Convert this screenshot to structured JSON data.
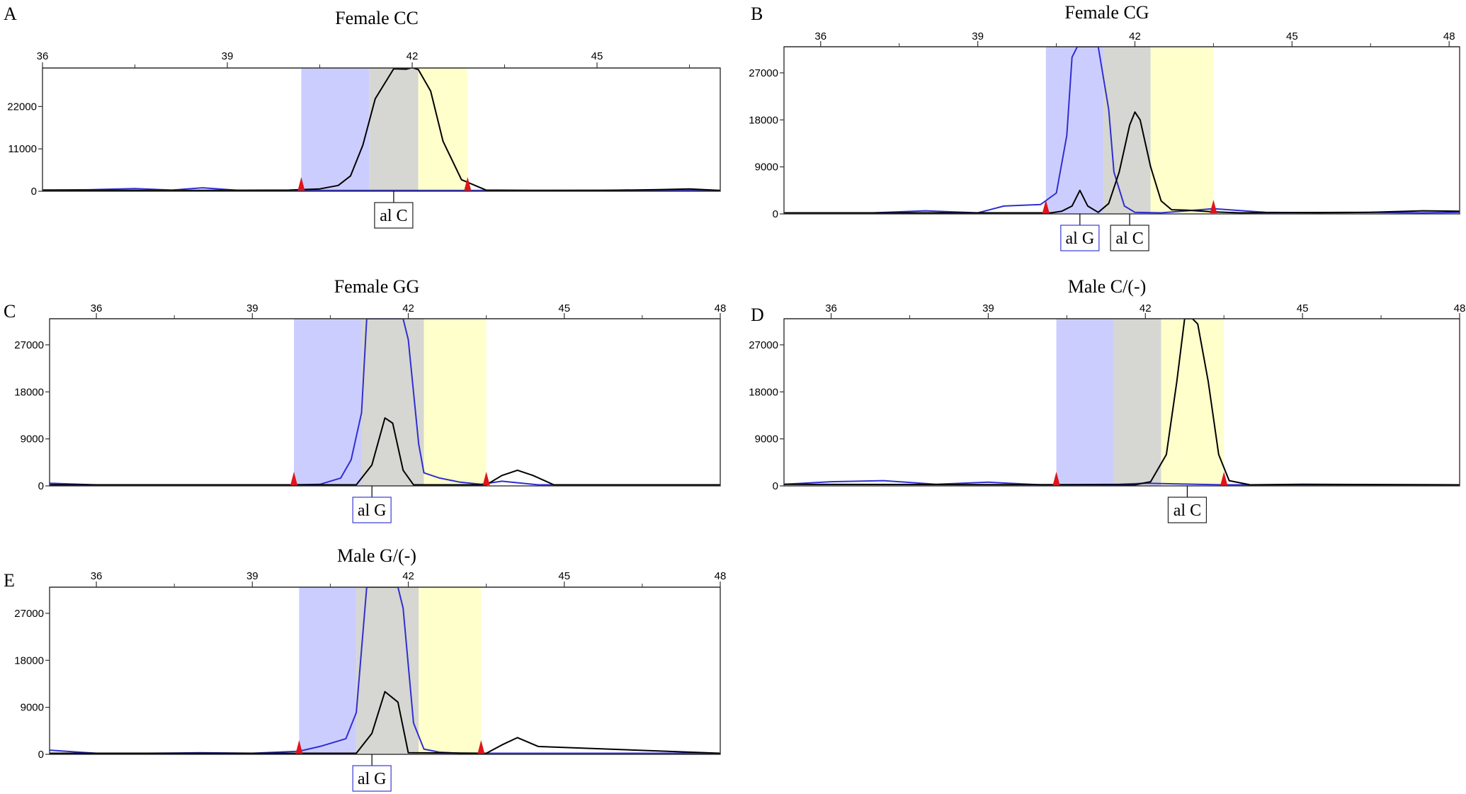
{
  "chart_data": [
    {
      "type": "line",
      "panel_letter": "A",
      "title": "Female  CC",
      "x_ticks": [
        36,
        39,
        42,
        45
      ],
      "xlim": [
        36,
        47
      ],
      "y_ticks": [
        0,
        11000,
        22000
      ],
      "ylim": [
        0,
        32000
      ],
      "bins": [
        {
          "color": "#cccdff",
          "from": 40.2,
          "to": 41.3
        },
        {
          "color": "#d6d6d2",
          "from": 41.3,
          "to": 42.1
        },
        {
          "color": "#ffffcc",
          "from": 42.1,
          "to": 42.9
        }
      ],
      "markers": [
        40.2,
        42.9
      ],
      "series": [
        {
          "color": "#2f2fd0",
          "x": [
            36,
            36.8,
            37.5,
            38.1,
            38.6,
            39.2,
            40.0,
            40.6,
            41.0,
            42.5,
            43.5,
            45.0,
            46.0,
            47.0
          ],
          "y": [
            300,
            400,
            700,
            300,
            900,
            200,
            200,
            200,
            200,
            200,
            200,
            250,
            200,
            200
          ]
        },
        {
          "color": "#000000",
          "x": [
            36,
            38.0,
            40.0,
            40.5,
            40.8,
            41.0,
            41.2,
            41.4,
            41.7,
            41.9,
            42.0,
            42.1,
            42.3,
            42.5,
            42.8,
            43.2,
            44.0,
            45.0,
            46.0,
            46.5,
            47.0
          ],
          "y": [
            300,
            200,
            300,
            600,
            1500,
            4000,
            12000,
            24000,
            31800,
            31700,
            32100,
            31600,
            26000,
            13000,
            3000,
            300,
            200,
            200,
            400,
            600,
            200
          ]
        }
      ],
      "allele_labels": [
        {
          "text": "al C",
          "x": 41.7,
          "style": "black"
        }
      ]
    },
    {
      "type": "line",
      "panel_letter": "B",
      "title": "Female  CG",
      "x_ticks": [
        36,
        39,
        42,
        45,
        48
      ],
      "xlim": [
        35.3,
        48.2
      ],
      "y_ticks": [
        0,
        9000,
        18000,
        27000
      ],
      "ylim": [
        0,
        32000
      ],
      "bins": [
        {
          "color": "#cccdff",
          "from": 40.3,
          "to": 41.4
        },
        {
          "color": "#d6d6d2",
          "from": 41.4,
          "to": 42.3
        },
        {
          "color": "#ffffcc",
          "from": 42.3,
          "to": 43.5
        }
      ],
      "markers": [
        40.3,
        43.5
      ],
      "series": [
        {
          "color": "#2f2fd0",
          "x": [
            35.3,
            37.0,
            38.0,
            39.0,
            39.5,
            40.2,
            40.5,
            40.7,
            40.8,
            40.9,
            41.1,
            41.3,
            41.5,
            41.6,
            41.8,
            42.0,
            42.5,
            43.5,
            44.5,
            45.5,
            46.5,
            47.5,
            48.2
          ],
          "y": [
            200,
            200,
            600,
            200,
            1500,
            1800,
            4000,
            15000,
            30000,
            32000,
            32000,
            32000,
            20000,
            8000,
            1500,
            300,
            200,
            1000,
            300,
            200,
            300,
            200,
            300
          ]
        },
        {
          "color": "#000000",
          "x": [
            35.3,
            40.4,
            40.6,
            40.8,
            40.95,
            41.1,
            41.3,
            41.5,
            41.7,
            41.9,
            42.0,
            42.1,
            42.3,
            42.5,
            42.7,
            43.0,
            43.5,
            44.0,
            46.5,
            47.5,
            48.2
          ],
          "y": [
            200,
            200,
            500,
            1500,
            4500,
            1500,
            300,
            2000,
            8000,
            17000,
            19500,
            18000,
            9000,
            2500,
            800,
            700,
            400,
            200,
            300,
            600,
            500
          ]
        }
      ],
      "allele_labels": [
        {
          "text": "al G",
          "x": 40.95,
          "style": "blue"
        },
        {
          "text": "al C",
          "x": 41.9,
          "style": "black"
        }
      ]
    },
    {
      "type": "line",
      "panel_letter": "C",
      "title": "Female  GG",
      "x_ticks": [
        36,
        39,
        42,
        45,
        48
      ],
      "xlim": [
        35.1,
        48.0
      ],
      "y_ticks": [
        0,
        9000,
        18000,
        27000
      ],
      "ylim": [
        0,
        32000
      ],
      "bins": [
        {
          "color": "#cccdff",
          "from": 39.8,
          "to": 41.1
        },
        {
          "color": "#d6d6d2",
          "from": 41.1,
          "to": 42.3
        },
        {
          "color": "#ffffcc",
          "from": 42.3,
          "to": 43.5
        }
      ],
      "markers": [
        39.8,
        43.5
      ],
      "series": [
        {
          "color": "#2f2fd0",
          "x": [
            35.1,
            36.0,
            37.0,
            38.0,
            39.0,
            39.8,
            40.3,
            40.7,
            40.9,
            41.1,
            41.2,
            41.4,
            41.6,
            41.9,
            42.0,
            42.2,
            42.3,
            42.6,
            43.0,
            43.4,
            43.8,
            44.5,
            46.0,
            47.0,
            48.0
          ],
          "y": [
            500,
            200,
            200,
            200,
            200,
            200,
            300,
            1500,
            5000,
            14000,
            32000,
            32000,
            32000,
            32000,
            28000,
            8000,
            2500,
            1500,
            700,
            300,
            900,
            200,
            200,
            200,
            200
          ]
        },
        {
          "color": "#000000",
          "x": [
            35.1,
            41.0,
            41.3,
            41.55,
            41.7,
            41.9,
            42.1,
            43.5,
            43.8,
            44.1,
            44.4,
            44.8,
            48.0
          ],
          "y": [
            200,
            200,
            4000,
            13000,
            12000,
            3000,
            200,
            200,
            2000,
            3000,
            2000,
            200,
            200
          ]
        }
      ],
      "allele_labels": [
        {
          "text": "al G",
          "x": 41.3,
          "style": "blue"
        }
      ]
    },
    {
      "type": "line",
      "panel_letter": "D",
      "title": "Male  C/(-)",
      "x_ticks": [
        36,
        39,
        42,
        45,
        48
      ],
      "xlim": [
        35.1,
        48.0
      ],
      "y_ticks": [
        0,
        9000,
        18000,
        27000
      ],
      "ylim": [
        0,
        32000
      ],
      "bins": [
        {
          "color": "#cccdff",
          "from": 40.3,
          "to": 41.4
        },
        {
          "color": "#d6d6d2",
          "from": 41.4,
          "to": 42.3
        },
        {
          "color": "#ffffcc",
          "from": 42.3,
          "to": 43.5
        }
      ],
      "markers": [
        40.3,
        43.5
      ],
      "series": [
        {
          "color": "#2f2fd0",
          "x": [
            35.1,
            36.0,
            37.0,
            38.0,
            39.0,
            40.0,
            41.5,
            42.0,
            43.5,
            48.0
          ],
          "y": [
            300,
            800,
            1000,
            300,
            700,
            200,
            300,
            500,
            200,
            200
          ]
        },
        {
          "color": "#000000",
          "x": [
            35.1,
            41.8,
            42.1,
            42.4,
            42.6,
            42.75,
            42.9,
            43.0,
            43.2,
            43.4,
            43.6,
            44.0,
            45.0,
            48.0
          ],
          "y": [
            300,
            200,
            800,
            6000,
            20000,
            32000,
            32000,
            31000,
            20000,
            6000,
            1000,
            200,
            300,
            200
          ]
        }
      ],
      "allele_labels": [
        {
          "text": "al C",
          "x": 42.8,
          "style": "black"
        }
      ]
    },
    {
      "type": "line",
      "panel_letter": "E",
      "title": "Male  G/(-)",
      "x_ticks": [
        36,
        39,
        42,
        45,
        48
      ],
      "xlim": [
        35.1,
        48.0
      ],
      "y_ticks": [
        0,
        9000,
        18000,
        27000
      ],
      "ylim": [
        0,
        32000
      ],
      "bins": [
        {
          "color": "#cccdff",
          "from": 39.9,
          "to": 41.0
        },
        {
          "color": "#d6d6d2",
          "from": 41.0,
          "to": 42.2
        },
        {
          "color": "#ffffcc",
          "from": 42.2,
          "to": 43.4
        }
      ],
      "markers": [
        39.9,
        43.4
      ],
      "series": [
        {
          "color": "#2f2fd0",
          "x": [
            35.1,
            36.0,
            37.0,
            38.0,
            39.0,
            39.9,
            40.3,
            40.8,
            41.0,
            41.2,
            41.3,
            41.5,
            41.8,
            41.9,
            42.1,
            42.3,
            42.6,
            43.0,
            43.5,
            48.0
          ],
          "y": [
            800,
            200,
            200,
            300,
            200,
            600,
            1500,
            3000,
            8000,
            32000,
            32000,
            32000,
            32000,
            28000,
            6000,
            1000,
            400,
            200,
            200,
            200
          ]
        },
        {
          "color": "#000000",
          "x": [
            35.1,
            41.0,
            41.3,
            41.55,
            41.8,
            42.0,
            43.5,
            43.8,
            44.1,
            44.5,
            48.0
          ],
          "y": [
            200,
            200,
            4000,
            12000,
            10000,
            300,
            200,
            1800,
            3200,
            1500,
            200
          ]
        }
      ],
      "allele_labels": [
        {
          "text": "al G",
          "x": 41.3,
          "style": "blue"
        }
      ]
    }
  ]
}
